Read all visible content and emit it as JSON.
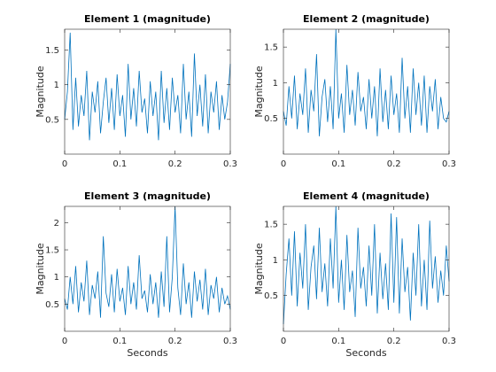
{
  "chart_data": [
    {
      "type": "line",
      "title": "Element 1 (magnitude)",
      "xlabel": "",
      "ylabel": "Magnitude",
      "xlim": [
        0,
        0.3
      ],
      "ylim": [
        0,
        1.8
      ],
      "xticks": [
        0,
        0.1,
        0.2,
        0.3
      ],
      "xtick_labels": [
        "0",
        "0.1",
        "0.2",
        "0.3"
      ],
      "yticks": [
        0.5,
        1,
        1.5
      ],
      "ytick_labels": [
        "0.5",
        "1",
        "1.5"
      ],
      "grid": false,
      "color": "#0072BD",
      "series": [
        {
          "x": [
            0,
            0.005,
            0.01,
            0.015,
            0.02,
            0.025,
            0.03,
            0.035,
            0.04,
            0.045,
            0.05,
            0.055,
            0.06,
            0.065,
            0.07,
            0.075,
            0.08,
            0.085,
            0.09,
            0.095,
            0.1,
            0.105,
            0.11,
            0.115,
            0.12,
            0.125,
            0.13,
            0.135,
            0.14,
            0.145,
            0.15,
            0.155,
            0.16,
            0.165,
            0.17,
            0.175,
            0.18,
            0.185,
            0.19,
            0.195,
            0.2,
            0.205,
            0.21,
            0.215,
            0.22,
            0.225,
            0.23,
            0.235,
            0.24,
            0.245,
            0.25,
            0.255,
            0.26,
            0.265,
            0.27,
            0.275,
            0.28,
            0.285,
            0.29,
            0.295,
            0.3
          ],
          "values": [
            0.5,
            0.9,
            1.75,
            0.35,
            1.1,
            0.4,
            0.85,
            0.55,
            1.2,
            0.2,
            0.9,
            0.6,
            1.05,
            0.3,
            0.75,
            1.1,
            0.45,
            0.95,
            0.35,
            1.15,
            0.55,
            0.85,
            0.25,
            1.3,
            0.5,
            0.95,
            0.4,
            1.2,
            0.6,
            0.8,
            0.3,
            1.05,
            0.55,
            0.9,
            0.2,
            1.2,
            0.45,
            0.95,
            0.35,
            1.1,
            0.6,
            0.85,
            0.3,
            1.3,
            0.5,
            0.9,
            0.25,
            1.45,
            0.55,
            1.0,
            0.4,
            1.15,
            0.3,
            0.9,
            0.6,
            1.05,
            0.35,
            0.85,
            0.5,
            0.75,
            1.3
          ]
        }
      ]
    },
    {
      "type": "line",
      "title": "Element 2 (magnitude)",
      "xlabel": "",
      "ylabel": "Magnitude",
      "xlim": [
        0,
        0.3
      ],
      "ylim": [
        0,
        1.75
      ],
      "xticks": [
        0,
        0.1,
        0.2,
        0.3
      ],
      "xtick_labels": [
        "0",
        "0.1",
        "0.2",
        "0.3"
      ],
      "yticks": [
        0.5,
        1,
        1.5
      ],
      "ytick_labels": [
        "0.5",
        "1",
        "1.5"
      ],
      "grid": false,
      "color": "#0072BD",
      "series": [
        {
          "x": [
            0,
            0.005,
            0.01,
            0.015,
            0.02,
            0.025,
            0.03,
            0.035,
            0.04,
            0.045,
            0.05,
            0.055,
            0.06,
            0.065,
            0.07,
            0.075,
            0.08,
            0.085,
            0.09,
            0.095,
            0.1,
            0.105,
            0.11,
            0.115,
            0.12,
            0.125,
            0.13,
            0.135,
            0.14,
            0.145,
            0.15,
            0.155,
            0.16,
            0.165,
            0.17,
            0.175,
            0.18,
            0.185,
            0.19,
            0.195,
            0.2,
            0.205,
            0.21,
            0.215,
            0.22,
            0.225,
            0.23,
            0.235,
            0.24,
            0.245,
            0.25,
            0.255,
            0.26,
            0.265,
            0.27,
            0.275,
            0.28,
            0.285,
            0.29,
            0.295,
            0.3
          ],
          "values": [
            0.6,
            0.4,
            0.95,
            0.5,
            1.1,
            0.35,
            0.85,
            0.55,
            1.2,
            0.3,
            0.9,
            0.6,
            1.4,
            0.25,
            0.8,
            1.05,
            0.45,
            0.95,
            0.35,
            1.75,
            0.5,
            0.85,
            0.3,
            1.25,
            0.55,
            0.9,
            0.4,
            1.15,
            0.6,
            0.8,
            0.35,
            1.05,
            0.5,
            0.95,
            0.25,
            1.2,
            0.45,
            0.9,
            0.35,
            1.1,
            0.55,
            0.85,
            0.3,
            1.35,
            0.5,
            0.95,
            0.3,
            1.2,
            0.55,
            1.0,
            0.4,
            1.1,
            0.3,
            0.95,
            0.6,
            1.05,
            0.35,
            0.8,
            0.5,
            0.45,
            0.6
          ]
        }
      ]
    },
    {
      "type": "line",
      "title": "Element 3 (magnitude)",
      "xlabel": "Seconds",
      "ylabel": "Magnitude",
      "xlim": [
        0,
        0.3
      ],
      "ylim": [
        0,
        2.3
      ],
      "xticks": [
        0,
        0.1,
        0.2,
        0.3
      ],
      "xtick_labels": [
        "0",
        "0.1",
        "0.2",
        "0.3"
      ],
      "yticks": [
        0.5,
        1,
        1.5,
        2
      ],
      "ytick_labels": [
        "0.5",
        "1",
        "1.5",
        "2"
      ],
      "grid": false,
      "color": "#0072BD",
      "series": [
        {
          "x": [
            0,
            0.005,
            0.01,
            0.015,
            0.02,
            0.025,
            0.03,
            0.035,
            0.04,
            0.045,
            0.05,
            0.055,
            0.06,
            0.065,
            0.07,
            0.075,
            0.08,
            0.085,
            0.09,
            0.095,
            0.1,
            0.105,
            0.11,
            0.115,
            0.12,
            0.125,
            0.13,
            0.135,
            0.14,
            0.145,
            0.15,
            0.155,
            0.16,
            0.165,
            0.17,
            0.175,
            0.18,
            0.185,
            0.19,
            0.195,
            0.2,
            0.205,
            0.21,
            0.215,
            0.22,
            0.225,
            0.23,
            0.235,
            0.24,
            0.245,
            0.25,
            0.255,
            0.26,
            0.265,
            0.27,
            0.275,
            0.28,
            0.285,
            0.29,
            0.295,
            0.3
          ],
          "values": [
            0.6,
            0.4,
            1.0,
            0.5,
            1.2,
            0.35,
            0.9,
            0.55,
            1.3,
            0.3,
            0.85,
            0.6,
            1.1,
            0.25,
            1.75,
            0.7,
            0.45,
            1.05,
            0.35,
            1.15,
            0.55,
            0.8,
            0.3,
            1.2,
            0.5,
            0.9,
            0.4,
            1.4,
            0.6,
            0.75,
            0.35,
            1.05,
            0.5,
            0.9,
            0.25,
            1.1,
            0.45,
            1.75,
            0.35,
            1.0,
            2.3,
            0.8,
            0.3,
            1.25,
            0.5,
            0.9,
            0.25,
            1.1,
            0.55,
            0.95,
            0.4,
            1.15,
            0.3,
            0.85,
            0.6,
            1.0,
            0.35,
            0.8,
            0.5,
            0.65,
            0.4
          ]
        }
      ]
    },
    {
      "type": "line",
      "title": "Element 4 (magnitude)",
      "xlabel": "Seconds",
      "ylabel": "Magnitude",
      "xlim": [
        0,
        0.3
      ],
      "ylim": [
        0,
        1.75
      ],
      "xticks": [
        0,
        0.1,
        0.2,
        0.3
      ],
      "xtick_labels": [
        "0",
        "0.1",
        "0.2",
        "0.3"
      ],
      "yticks": [
        0.5,
        1,
        1.5
      ],
      "ytick_labels": [
        "0.5",
        "1",
        "1.5"
      ],
      "grid": false,
      "color": "#0072BD",
      "series": [
        {
          "x": [
            0,
            0.005,
            0.01,
            0.015,
            0.02,
            0.025,
            0.03,
            0.035,
            0.04,
            0.045,
            0.05,
            0.055,
            0.06,
            0.065,
            0.07,
            0.075,
            0.08,
            0.085,
            0.09,
            0.095,
            0.1,
            0.105,
            0.11,
            0.115,
            0.12,
            0.125,
            0.13,
            0.135,
            0.14,
            0.145,
            0.15,
            0.155,
            0.16,
            0.165,
            0.17,
            0.175,
            0.18,
            0.185,
            0.19,
            0.195,
            0.2,
            0.205,
            0.21,
            0.215,
            0.22,
            0.225,
            0.23,
            0.235,
            0.24,
            0.245,
            0.25,
            0.255,
            0.26,
            0.265,
            0.27,
            0.275,
            0.28,
            0.285,
            0.29,
            0.295,
            0.3
          ],
          "values": [
            0.1,
            0.8,
            1.3,
            0.5,
            1.4,
            0.35,
            1.1,
            0.6,
            1.5,
            0.3,
            0.9,
            1.2,
            0.45,
            1.45,
            0.55,
            0.95,
            0.35,
            1.3,
            0.6,
            1.75,
            0.4,
            1.0,
            0.3,
            1.35,
            0.55,
            0.85,
            0.2,
            1.45,
            0.6,
            0.9,
            0.35,
            1.2,
            0.5,
            1.5,
            0.25,
            1.1,
            0.45,
            0.95,
            0.3,
            1.65,
            0.4,
            1.6,
            0.25,
            1.3,
            0.55,
            0.9,
            0.15,
            1.1,
            0.5,
            1.5,
            0.35,
            1.0,
            0.3,
            1.55,
            0.6,
            1.05,
            0.4,
            0.85,
            0.5,
            1.2,
            0.7
          ]
        }
      ]
    }
  ]
}
